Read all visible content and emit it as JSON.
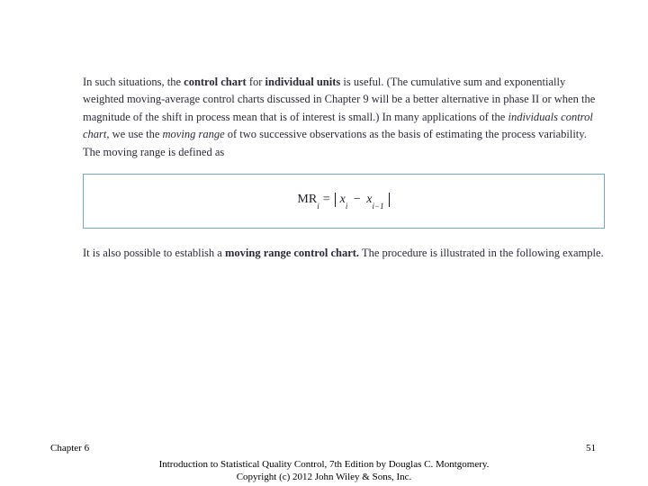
{
  "paragraph1": {
    "pre": "In such situations, the ",
    "bold1": "control chart",
    "mid1": " for ",
    "bold2": "individual units",
    "post1": " is useful. (The cumulative sum and exponentially weighted moving-average control charts discussed in Chapter 9 will be a better alternative in phase II or when the magnitude of the shift in process mean that is of interest is small.) In many applications of the ",
    "ital1": "individuals control chart,",
    "mid2": " we use the ",
    "ital2": "moving range",
    "post2": " of two successive observations as the basis of estimating the process variability. The moving range is defined as"
  },
  "formula": {
    "lhs_base": "MR",
    "lhs_sub": "i",
    "eq": "=",
    "x1_base": "x",
    "x1_sub": "i",
    "minus": "−",
    "x2_base": "x",
    "x2_sub": "i−1"
  },
  "paragraph2": {
    "pre": "It is also possible to establish a ",
    "bold1": "moving range control chart.",
    "post": " The procedure is illustrated in the following example."
  },
  "footer": {
    "chapter": "Chapter 6",
    "citation_line1": "Introduction to Statistical Quality Control, 7th Edition by Douglas C. Montgomery.",
    "citation_line2": "Copyright (c) 2012  John Wiley & Sons, Inc.",
    "page": "51"
  },
  "colors": {
    "text": "#2a2a3a",
    "box_border": "#6fa8c8",
    "background": "#ffffff"
  }
}
